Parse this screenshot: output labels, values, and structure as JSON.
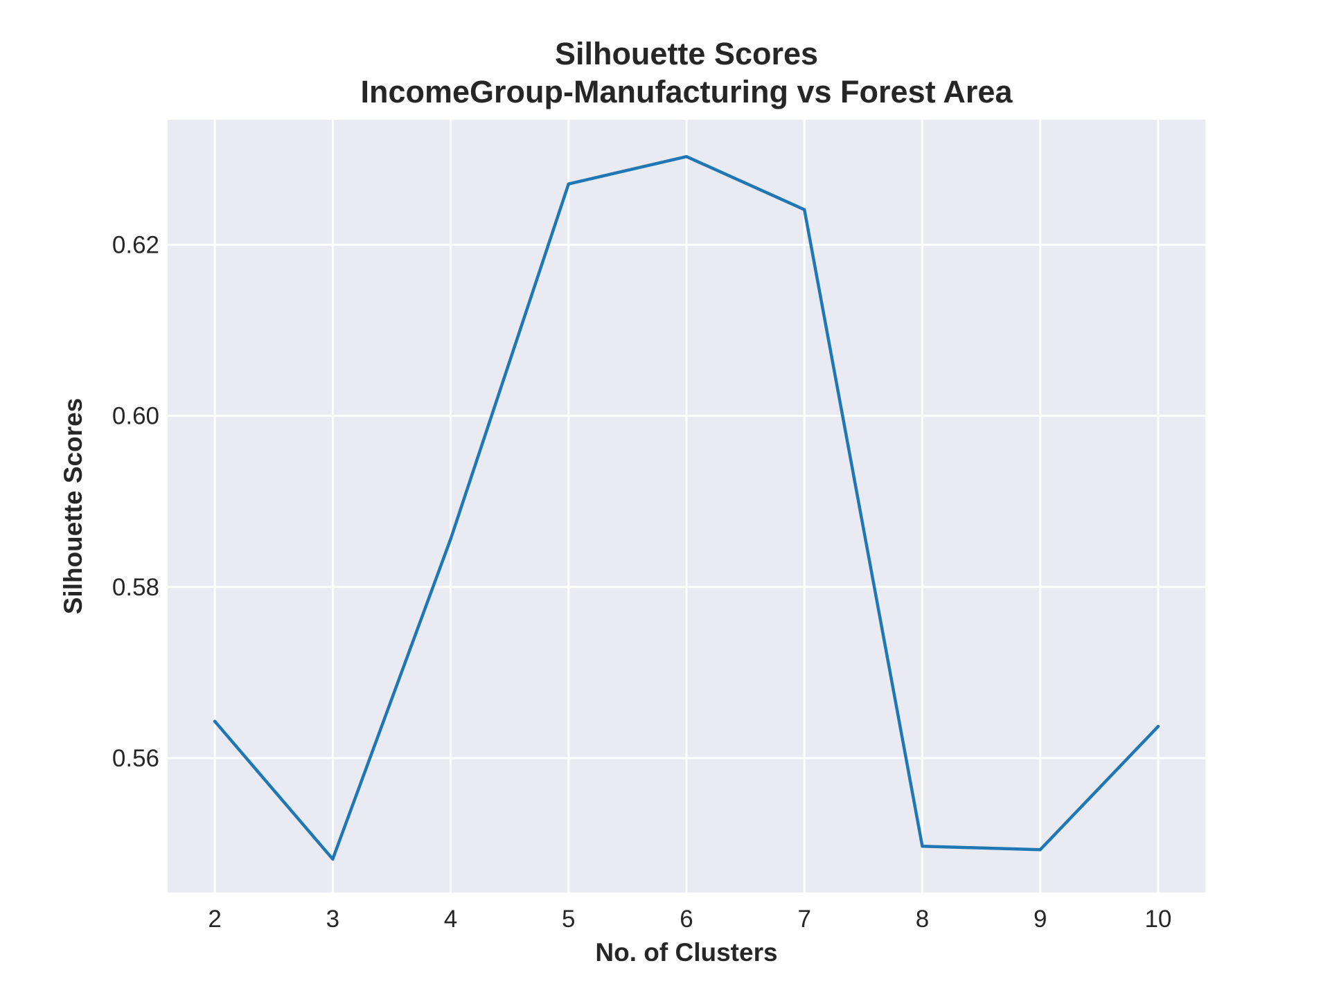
{
  "chart_data": {
    "type": "line",
    "title": [
      "Silhouette Scores",
      "IncomeGroup-Manufacturing vs Forest Area"
    ],
    "xlabel": "No. of Clusters",
    "ylabel": "Silhouette Scores",
    "x": [
      2,
      3,
      4,
      5,
      6,
      7,
      8,
      9,
      10
    ],
    "xticks": [
      "2",
      "3",
      "4",
      "5",
      "6",
      "7",
      "8",
      "9",
      "10"
    ],
    "yticks": [
      0.56,
      0.58,
      0.6,
      0.62
    ],
    "ytick_labels": [
      "0.56",
      "0.58",
      "0.60",
      "0.62"
    ],
    "xlim": [
      1.6,
      10.4
    ],
    "ylim": [
      0.5443,
      0.6346
    ],
    "grid": true,
    "background": "#eaeaf2",
    "series": [
      {
        "color": "#1f77b4",
        "values": [
          0.5643,
          0.5482,
          0.5856,
          0.6271,
          0.6303,
          0.6241,
          0.5497,
          0.5493,
          0.5637
        ]
      }
    ]
  }
}
